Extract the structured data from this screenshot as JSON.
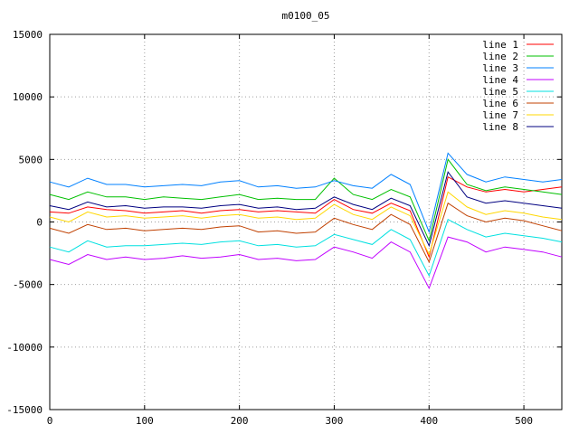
{
  "chart_data": {
    "type": "line",
    "title": "m0100_05",
    "xlabel": "",
    "ylabel": "",
    "xlim": [
      0,
      540
    ],
    "ylim": [
      -15000,
      15000
    ],
    "x_ticks": [
      0,
      100,
      200,
      300,
      400,
      500
    ],
    "y_ticks": [
      -15000,
      -10000,
      -5000,
      0,
      5000,
      10000,
      15000
    ],
    "grid": true,
    "legend_position": "top-right",
    "x": [
      0,
      20,
      40,
      60,
      80,
      100,
      120,
      140,
      160,
      180,
      200,
      220,
      240,
      260,
      280,
      300,
      320,
      340,
      360,
      380,
      400,
      420,
      440,
      460,
      480,
      500,
      520,
      540
    ],
    "series": [
      {
        "name": "line 1",
        "color": "#ff0000",
        "values": [
          800,
          700,
          1200,
          1000,
          900,
          700,
          800,
          900,
          700,
          900,
          1000,
          800,
          900,
          800,
          700,
          1800,
          1000,
          700,
          1500,
          900,
          -2800,
          3600,
          2800,
          2400,
          2600,
          2400,
          2600,
          2800
        ]
      },
      {
        "name": "line 2",
        "color": "#00c000",
        "values": [
          2200,
          1800,
          2400,
          2000,
          2000,
          1800,
          2000,
          1900,
          1800,
          2000,
          2200,
          1800,
          1900,
          1800,
          1800,
          3500,
          2200,
          1800,
          2600,
          2000,
          -1500,
          5000,
          3000,
          2500,
          2800,
          2600,
          2400,
          2200
        ]
      },
      {
        "name": "line 3",
        "color": "#0080ff",
        "values": [
          3200,
          2800,
          3500,
          3000,
          3000,
          2800,
          2900,
          3000,
          2900,
          3200,
          3300,
          2800,
          2900,
          2700,
          2800,
          3300,
          2900,
          2700,
          3800,
          3000,
          -800,
          5500,
          3800,
          3200,
          3600,
          3400,
          3200,
          3400
        ]
      },
      {
        "name": "line 4",
        "color": "#c000ff",
        "values": [
          -3000,
          -3400,
          -2600,
          -3000,
          -2800,
          -3000,
          -2900,
          -2700,
          -2900,
          -2800,
          -2600,
          -3000,
          -2900,
          -3100,
          -3000,
          -2000,
          -2400,
          -2900,
          -1600,
          -2400,
          -5300,
          -1200,
          -1600,
          -2400,
          -2000,
          -2200,
          -2400,
          -2800
        ]
      },
      {
        "name": "line 5",
        "color": "#00e0e0",
        "values": [
          -2000,
          -2400,
          -1500,
          -2000,
          -1900,
          -1900,
          -1800,
          -1700,
          -1800,
          -1600,
          -1500,
          -1900,
          -1800,
          -2000,
          -1900,
          -1000,
          -1400,
          -1800,
          -600,
          -1400,
          -4300,
          200,
          -600,
          -1200,
          -900,
          -1100,
          -1300,
          -1600
        ]
      },
      {
        "name": "line 6",
        "color": "#c04000",
        "values": [
          -500,
          -900,
          -200,
          -600,
          -500,
          -700,
          -600,
          -500,
          -600,
          -400,
          -300,
          -800,
          -700,
          -900,
          -800,
          300,
          -200,
          -600,
          600,
          -200,
          -3200,
          1500,
          500,
          0,
          300,
          100,
          -300,
          -700
        ]
      },
      {
        "name": "line 7",
        "color": "#ffd700",
        "values": [
          400,
          0,
          800,
          400,
          500,
          300,
          400,
          500,
          300,
          500,
          600,
          300,
          400,
          200,
          300,
          1400,
          600,
          200,
          1200,
          500,
          -2600,
          2400,
          1200,
          600,
          900,
          700,
          400,
          200
        ]
      },
      {
        "name": "line 8",
        "color": "#000080",
        "values": [
          1300,
          1000,
          1600,
          1200,
          1300,
          1100,
          1200,
          1200,
          1100,
          1300,
          1400,
          1100,
          1200,
          1000,
          1100,
          2000,
          1400,
          1000,
          1900,
          1300,
          -1900,
          4000,
          2000,
          1500,
          1700,
          1500,
          1300,
          1100
        ]
      }
    ]
  }
}
